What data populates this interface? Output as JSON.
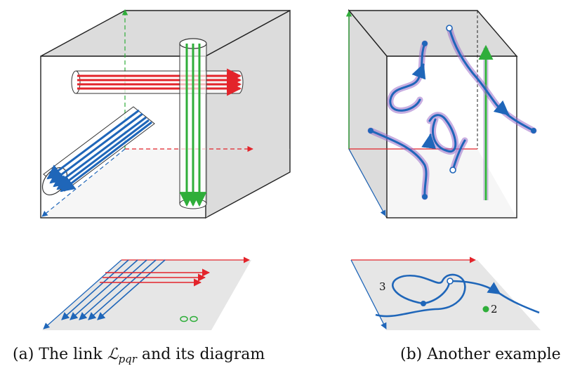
{
  "captions": {
    "a_prefix": "(a) The link ",
    "a_symbol": "ℒ",
    "a_subscript": "pqr",
    "a_suffix": " and its diagram",
    "b": "(b) Another example"
  },
  "diagram_labels": {
    "crossing_count": "3",
    "point_count": "2"
  },
  "colors": {
    "red": "#e3242b",
    "blue": "#1f66b9",
    "green": "#2fae3a",
    "purple": "#9b6cc9",
    "face_gray": "#dcdcdc",
    "edge": "#222222"
  }
}
